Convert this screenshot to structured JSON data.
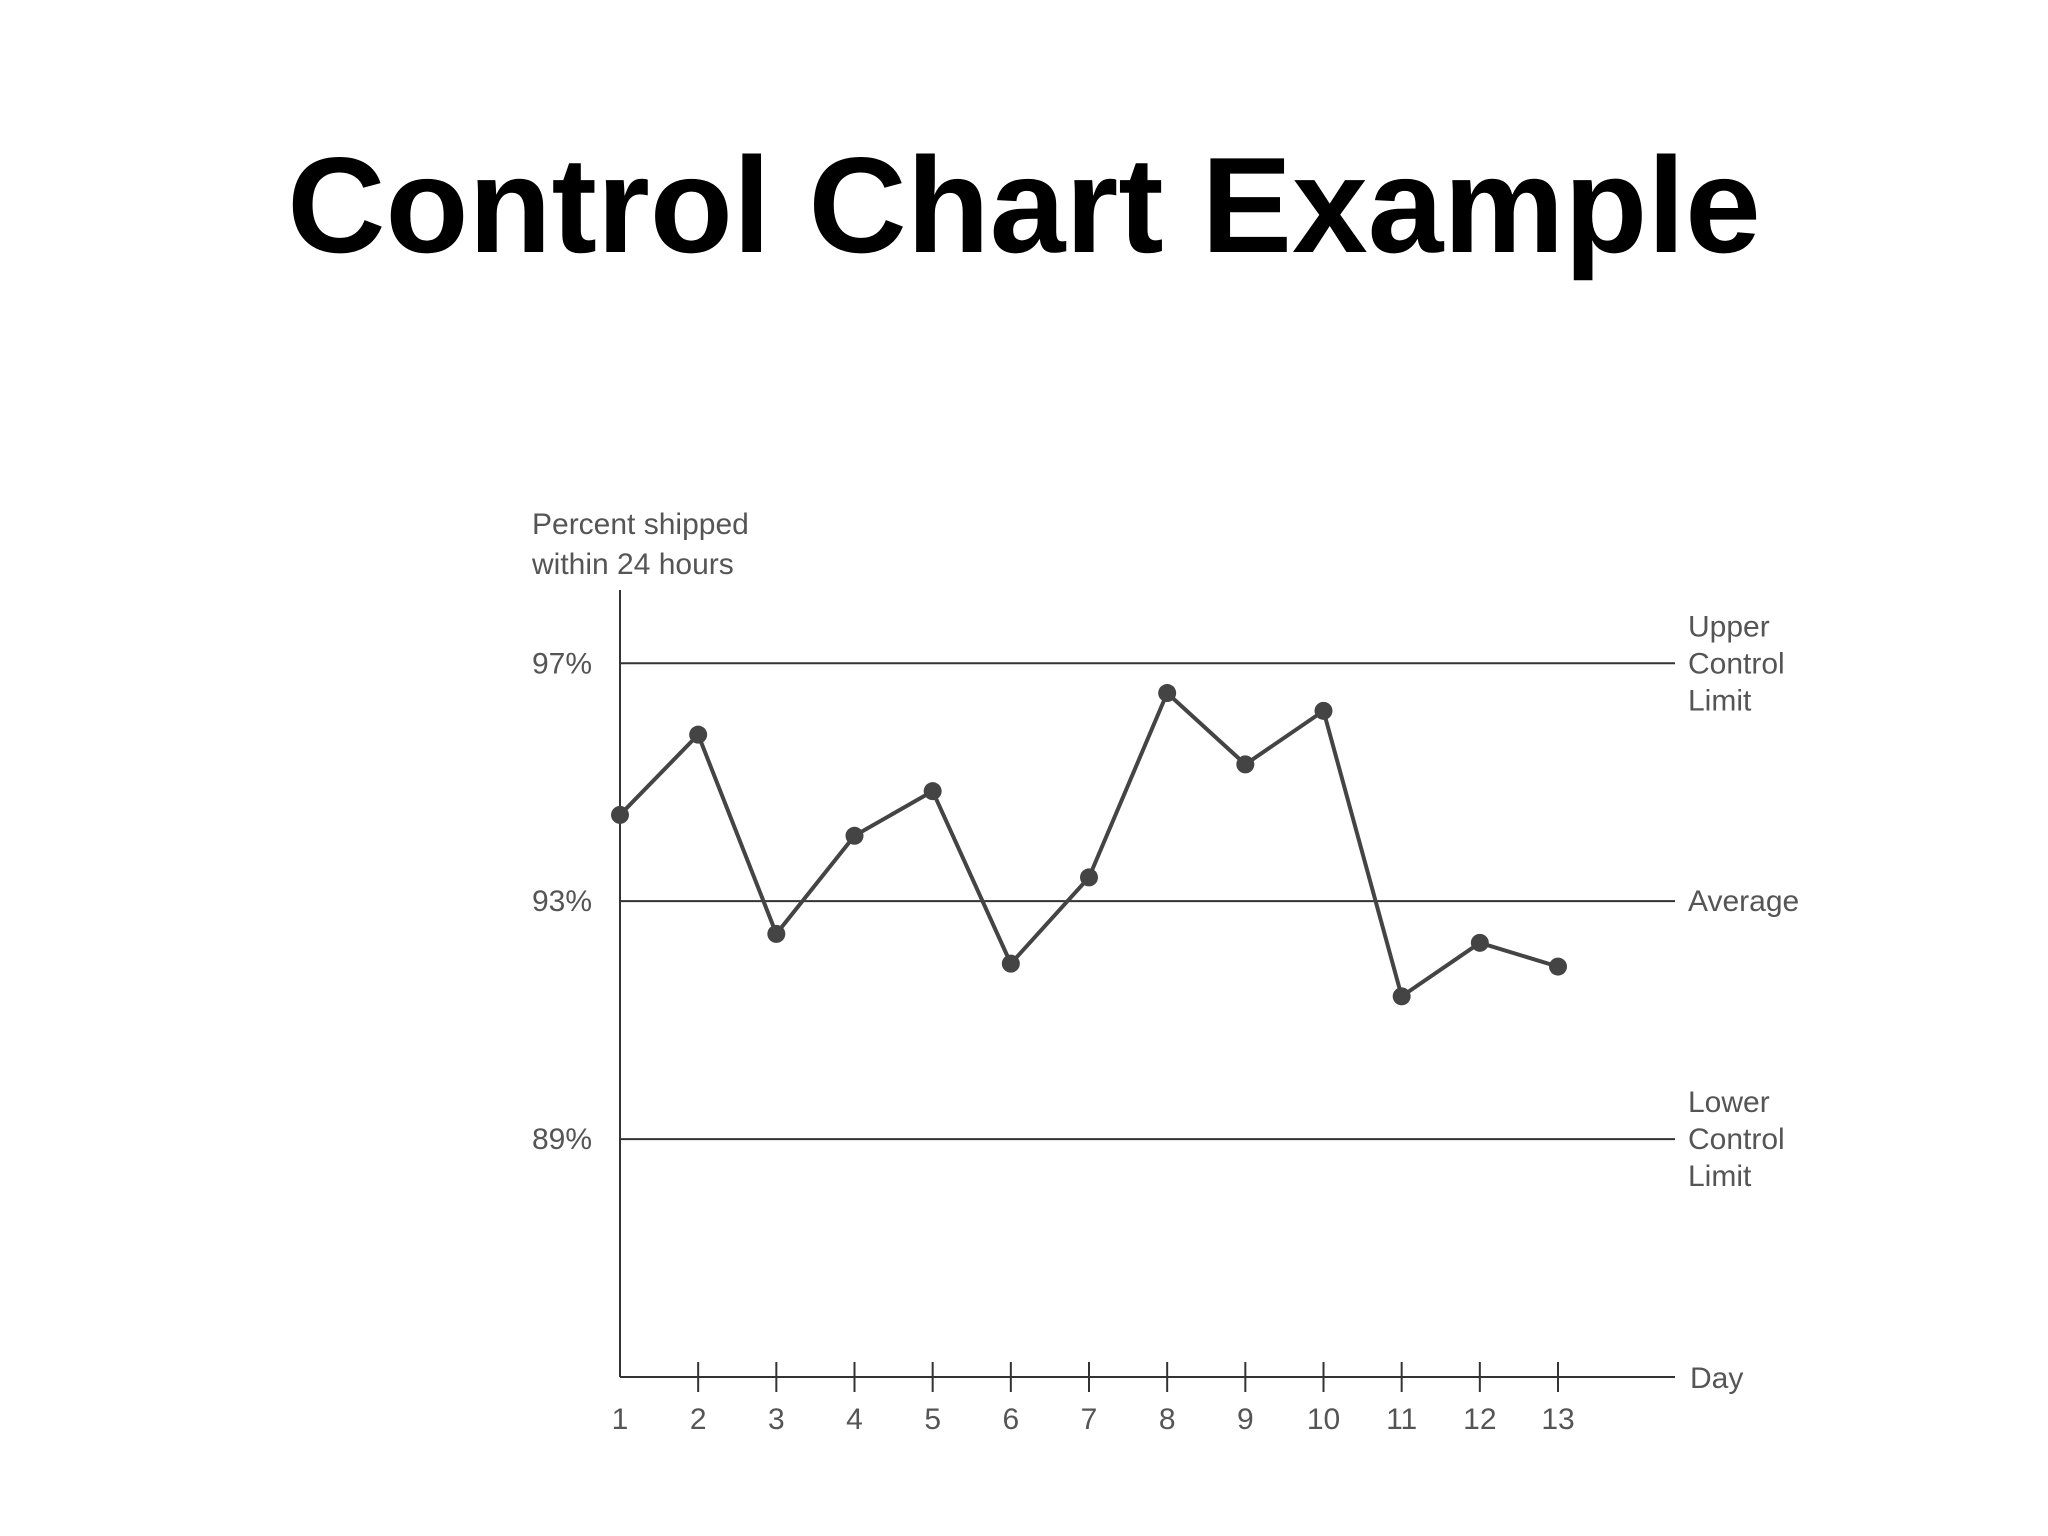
{
  "slide": {
    "title": "Control Chart Example"
  },
  "chart_data": {
    "type": "line",
    "title": "Control Chart Example",
    "ylabel": [
      "Percent shipped",
      "within 24 hours"
    ],
    "xlabel": "Day",
    "x": [
      1,
      2,
      3,
      4,
      5,
      6,
      7,
      8,
      9,
      10,
      11,
      12,
      13
    ],
    "x_tick_labels": [
      "1",
      "2",
      "3",
      "4",
      "5",
      "6",
      "7",
      "8",
      "9",
      "10",
      "11",
      "12",
      "13"
    ],
    "y_tick_labels": [
      "97%",
      "93%",
      "89%"
    ],
    "y_tick_values": [
      97,
      93,
      89
    ],
    "ylim": [
      85,
      98.4
    ],
    "grid": false,
    "series": [
      {
        "values": [
          94.45,
          95.8,
          92.45,
          94.1,
          94.85,
          91.95,
          93.4,
          96.5,
          95.3,
          96.2,
          91.4,
          92.3,
          91.9
        ]
      }
    ],
    "reference_lines": [
      {
        "value": 97,
        "label": [
          "Upper",
          "Control",
          "Limit"
        ]
      },
      {
        "value": 93,
        "label": [
          "Average"
        ]
      },
      {
        "value": 89,
        "label": [
          "Lower",
          "Control",
          "Limit"
        ]
      }
    ],
    "colors": {
      "line": "#444444",
      "axis": "#333333",
      "text": "#555555"
    }
  }
}
